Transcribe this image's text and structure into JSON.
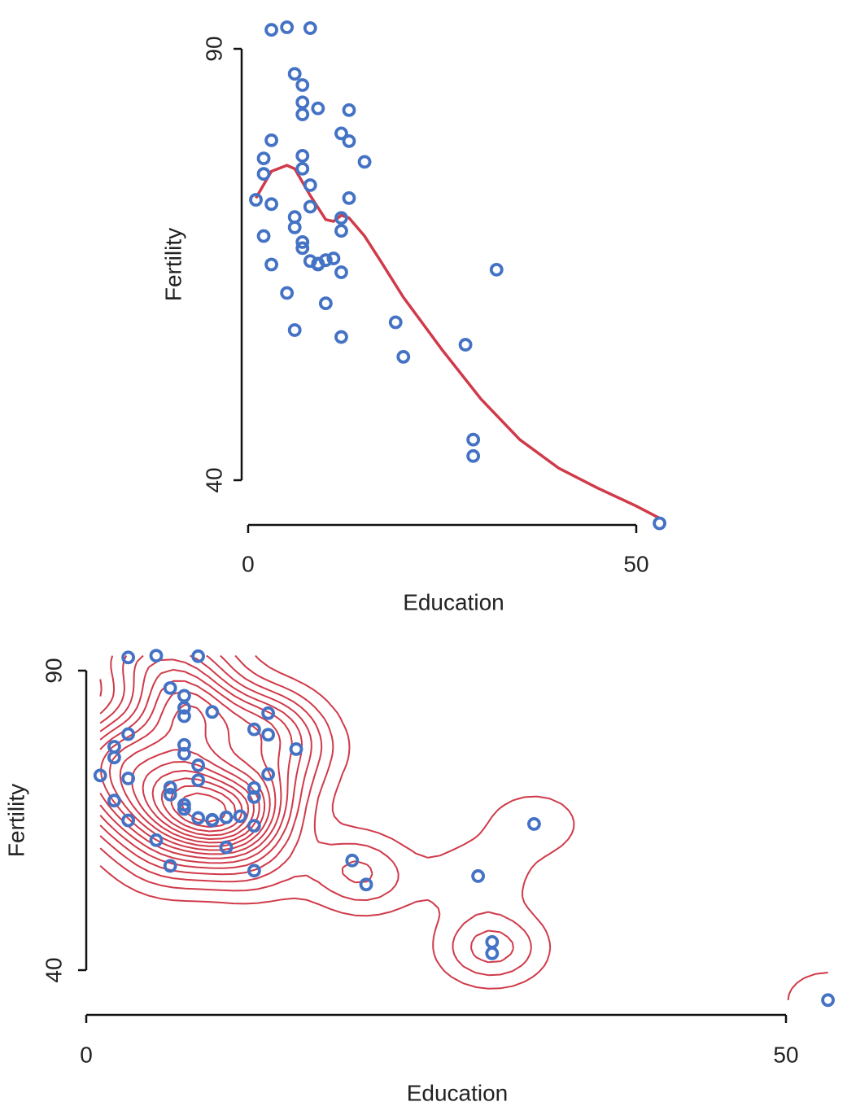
{
  "chart_data": [
    {
      "type": "scatter",
      "x_label": "Education",
      "y_label": "Fertility",
      "xlim": [
        1,
        53
      ],
      "ylim": [
        35,
        92.5
      ],
      "xticks": [
        0,
        50
      ],
      "yticks": [
        40,
        90
      ],
      "color": "#4472c4",
      "x": [
        12,
        9,
        5,
        7,
        15,
        7,
        7,
        8,
        7,
        13,
        6,
        12,
        7,
        12,
        5,
        2,
        8,
        28,
        20,
        9,
        10,
        3,
        12,
        6,
        1,
        8,
        3,
        10,
        19,
        8,
        2,
        6,
        2,
        6,
        3,
        9,
        3,
        13,
        12,
        11,
        13,
        32,
        7,
        7,
        53,
        29,
        29
      ],
      "values": [
        80.2,
        83.1,
        92.5,
        85.8,
        76.9,
        76.1,
        83.8,
        92.4,
        82.4,
        82.9,
        87.1,
        64.1,
        66.9,
        68.9,
        61.7,
        68.3,
        71.7,
        55.7,
        54.3,
        65.1,
        65.5,
        65.0,
        56.6,
        57.4,
        72.5,
        74.2,
        72.0,
        60.5,
        58.3,
        65.4,
        75.5,
        69.3,
        77.3,
        70.5,
        79.4,
        65.0,
        92.2,
        79.3,
        70.4,
        65.7,
        72.7,
        64.4,
        77.6,
        67.6,
        35.0,
        44.7,
        42.8
      ],
      "line": {
        "color": "#d03a4a",
        "x": [
          1,
          3,
          5,
          6,
          8,
          10,
          11,
          12,
          13,
          15,
          17,
          20,
          25,
          30,
          35,
          40,
          45,
          50,
          53
        ],
        "values": [
          72.7,
          75.8,
          76.5,
          76.1,
          73.0,
          70.2,
          70.0,
          70.7,
          70.4,
          68.3,
          65.5,
          61.2,
          55.1,
          49.4,
          44.7,
          41.4,
          39.1,
          37.0,
          35.6
        ]
      }
    },
    {
      "type": "contour",
      "x_label": "Education",
      "y_label": "Fertility",
      "xlim": [
        1,
        53
      ],
      "ylim": [
        35,
        92.5
      ],
      "xticks": [
        0,
        50
      ],
      "yticks": [
        40,
        90
      ],
      "color": "#4472c4",
      "contour_color": "#d03a4a",
      "x": [
        12,
        9,
        5,
        7,
        15,
        7,
        7,
        8,
        7,
        13,
        6,
        12,
        7,
        12,
        5,
        2,
        8,
        28,
        20,
        9,
        10,
        3,
        12,
        6,
        1,
        8,
        3,
        10,
        19,
        8,
        2,
        6,
        2,
        6,
        3,
        9,
        3,
        13,
        12,
        11,
        13,
        32,
        7,
        7,
        53,
        29,
        29
      ],
      "values": [
        80.2,
        83.1,
        92.5,
        85.8,
        76.9,
        76.1,
        83.8,
        92.4,
        82.4,
        82.9,
        87.1,
        64.1,
        66.9,
        68.9,
        61.7,
        68.3,
        71.7,
        55.7,
        54.3,
        65.1,
        65.5,
        65.0,
        56.6,
        57.4,
        72.5,
        74.2,
        72.0,
        60.5,
        58.3,
        65.4,
        75.5,
        69.3,
        77.3,
        70.5,
        79.4,
        65.0,
        92.2,
        79.3,
        70.4,
        65.7,
        72.7,
        64.4,
        77.6,
        67.6,
        35.0,
        44.7,
        42.8
      ]
    }
  ]
}
